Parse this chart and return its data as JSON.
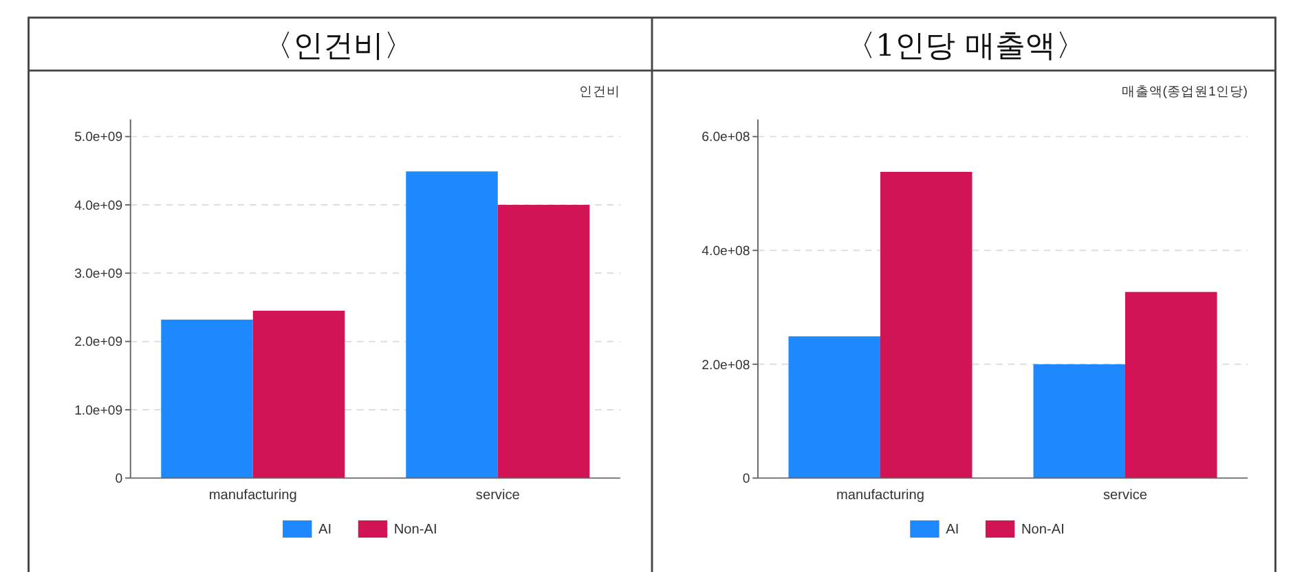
{
  "chart_data": [
    {
      "type": "bar",
      "title": "〈인건비〉",
      "ylabel": "인건비",
      "categories": [
        "manufacturing",
        "service"
      ],
      "series": [
        {
          "name": "AI",
          "color": "#1e88ff",
          "values": [
            2320000000,
            4490000000
          ]
        },
        {
          "name": "Non-AI",
          "color": "#d21356",
          "values": [
            2450000000,
            4000000000
          ]
        }
      ],
      "ylim": [
        0,
        5250000000
      ],
      "yticks": [
        0,
        {
          "value": 1000000000,
          "label": "1.0e+09"
        },
        {
          "value": 2000000000,
          "label": "2.0e+09"
        },
        {
          "value": 3000000000,
          "label": "3.0e+09"
        },
        {
          "value": 4000000000,
          "label": "4.0e+09"
        },
        {
          "value": 5000000000,
          "label": "5.0e+09"
        }
      ],
      "grid": "y",
      "legend": "bottom"
    },
    {
      "type": "bar",
      "title": "〈1인당 매출액〉",
      "ylabel": "매출액(종업원1인당)",
      "categories": [
        "manufacturing",
        "service"
      ],
      "series": [
        {
          "name": "AI",
          "color": "#1e88ff",
          "values": [
            249000000,
            200000000
          ]
        },
        {
          "name": "Non-AI",
          "color": "#d21356",
          "values": [
            538000000,
            327000000
          ]
        }
      ],
      "ylim": [
        0,
        630000000
      ],
      "yticks": [
        0,
        {
          "value": 200000000,
          "label": "2.0e+08"
        },
        {
          "value": 400000000,
          "label": "4.0e+08"
        },
        {
          "value": 600000000,
          "label": "6.0e+08"
        }
      ],
      "grid": "y",
      "legend": "bottom"
    }
  ]
}
